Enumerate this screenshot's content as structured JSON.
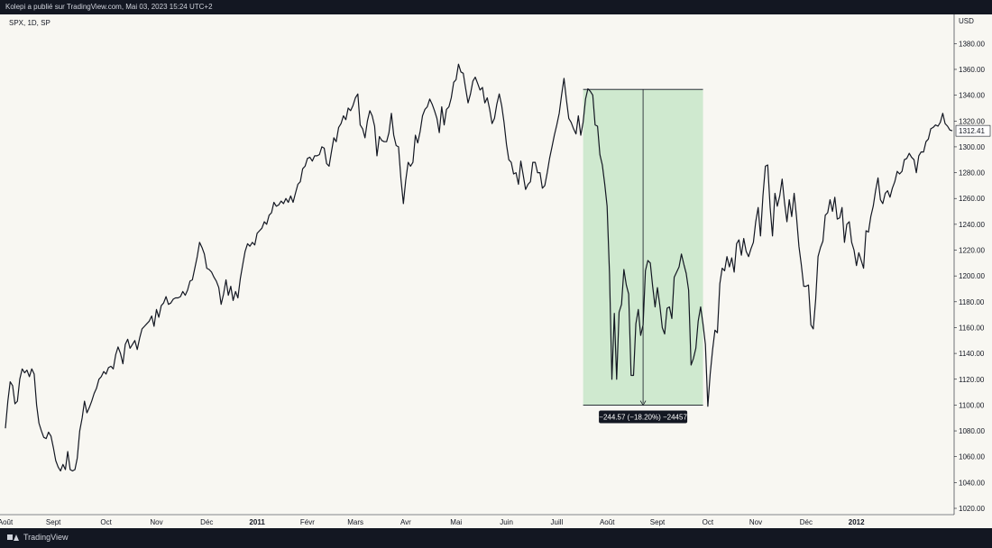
{
  "header": {
    "publish_line": "Kolepi a publié sur TradingView.com, Mai 03, 2023 15:24 UTC+2"
  },
  "symbol_line": "SPX, 1D, SP",
  "footer": {
    "brand": "TradingView"
  },
  "measure_label": "−244.57 (−18.20%) −24457",
  "colors": {
    "line": "#131722",
    "measure_fill": "#c8e6c9",
    "background": "#f8f7f2",
    "bars": "#131722"
  },
  "chart_data": {
    "type": "line",
    "currency": "USD",
    "last_price_label": "1312.41",
    "ylim": [
      1020,
      1390
    ],
    "y_ticks": [
      "1380.00",
      "1360.00",
      "1340.00",
      "1320.00",
      "1300.00",
      "1280.00",
      "1260.00",
      "1240.00",
      "1220.00",
      "1200.00",
      "1180.00",
      "1160.00",
      "1140.00",
      "1120.00",
      "1100.00",
      "1080.00",
      "1060.00",
      "1040.00",
      "1020.00"
    ],
    "x_ticks": [
      "Août",
      "Sept",
      "Oct",
      "Nov",
      "Déc",
      "2011",
      "Févr",
      "Mars",
      "Avr",
      "Mai",
      "Juin",
      "Juill",
      "Août",
      "Sept",
      "Oct",
      "Nov",
      "Déc",
      "2012"
    ],
    "x_tick_idx": [
      0,
      20,
      42,
      63,
      84,
      105,
      126,
      146,
      167,
      188,
      209,
      230,
      251,
      272,
      293,
      313,
      334,
      355
    ],
    "measure": {
      "start_idx": 241,
      "end_idx": 291,
      "high": 1344.5,
      "low": 1099.9
    },
    "series": [
      {
        "values": [
          1082,
          1103,
          1118,
          1115,
          1101,
          1103,
          1120,
          1128,
          1125,
          1127,
          1122,
          1128,
          1124,
          1100,
          1086,
          1080,
          1075,
          1074,
          1079,
          1076,
          1067,
          1057,
          1052,
          1049,
          1054,
          1050,
          1064,
          1050,
          1049,
          1050,
          1059,
          1080,
          1090,
          1103,
          1094,
          1098,
          1103,
          1109,
          1113,
          1120,
          1122,
          1126,
          1124,
          1129,
          1130,
          1128,
          1139,
          1145,
          1140,
          1132,
          1147,
          1151,
          1144,
          1147,
          1150,
          1143,
          1152,
          1159,
          1161,
          1163,
          1165,
          1169,
          1161,
          1174,
          1168,
          1177,
          1179,
          1184,
          1178,
          1179,
          1182,
          1183,
          1183,
          1184,
          1188,
          1185,
          1189,
          1196,
          1197,
          1206,
          1215,
          1226,
          1222,
          1217,
          1206,
          1205,
          1203,
          1199,
          1196,
          1191,
          1178,
          1186,
          1197,
          1185,
          1192,
          1181,
          1188,
          1183,
          1198,
          1209,
          1219,
          1225,
          1223,
          1226,
          1224,
          1233,
          1235,
          1237,
          1242,
          1240,
          1247,
          1249,
          1257,
          1254,
          1255,
          1258,
          1256,
          1260,
          1257,
          1262,
          1257,
          1264,
          1271,
          1273,
          1283,
          1285,
          1291,
          1292,
          1289,
          1293,
          1293,
          1294,
          1300,
          1299,
          1287,
          1285,
          1296,
          1307,
          1304,
          1315,
          1318,
          1324,
          1321,
          1330,
          1328,
          1332,
          1338,
          1341,
          1317,
          1314,
          1307,
          1320,
          1328,
          1324,
          1316,
          1293,
          1308,
          1305,
          1304,
          1304,
          1311,
          1326,
          1309,
          1301,
          1300,
          1275,
          1256,
          1274,
          1288,
          1285,
          1288,
          1309,
          1303,
          1312,
          1324,
          1329,
          1331,
          1337,
          1333,
          1328,
          1322,
          1311,
          1331,
          1317,
          1329,
          1331,
          1338,
          1350,
          1352,
          1364,
          1358,
          1357,
          1345,
          1334,
          1341,
          1351,
          1354,
          1349,
          1344,
          1346,
          1334,
          1338,
          1329,
          1318,
          1322,
          1333,
          1341,
          1332,
          1319,
          1302,
          1290,
          1288,
          1279,
          1280,
          1271,
          1289,
          1278,
          1267,
          1271,
          1273,
          1288,
          1288,
          1280,
          1280,
          1268,
          1270,
          1280,
          1291,
          1300,
          1309,
          1317,
          1326,
          1340,
          1353,
          1337,
          1322,
          1319,
          1314,
          1310,
          1324,
          1309,
          1319,
          1337,
          1345,
          1343,
          1340,
          1317,
          1316,
          1294,
          1286,
          1271,
          1254,
          1201,
          1120,
          1171,
          1120,
          1172,
          1178,
          1205,
          1193,
          1186,
          1123,
          1123,
          1163,
          1174,
          1154,
          1162,
          1204,
          1212,
          1210,
          1192,
          1176,
          1191,
          1177,
          1160,
          1155,
          1175,
          1176,
          1167,
          1199,
          1203,
          1207,
          1217,
          1209,
          1202,
          1189,
          1131,
          1136,
          1144,
          1165,
          1176,
          1163,
          1147,
          1099,
          1124,
          1143,
          1158,
          1156,
          1194,
          1206,
          1204,
          1215,
          1207,
          1214,
          1203,
          1225,
          1228,
          1216,
          1229,
          1219,
          1215,
          1221,
          1226,
          1242,
          1253,
          1231,
          1262,
          1285,
          1286,
          1253,
          1231,
          1264,
          1254,
          1262,
          1275,
          1257,
          1242,
          1259,
          1246,
          1264,
          1246,
          1223,
          1209,
          1192,
          1192,
          1193,
          1162,
          1159,
          1182,
          1215,
          1222,
          1227,
          1247,
          1249,
          1259,
          1250,
          1261,
          1244,
          1245,
          1253,
          1226,
          1240,
          1242,
          1226,
          1220,
          1208,
          1218,
          1212,
          1206,
          1235,
          1234,
          1246,
          1254,
          1266,
          1276,
          1259,
          1256,
          1264,
          1266,
          1261,
          1268,
          1273,
          1281,
          1279,
          1281,
          1290,
          1291,
          1295,
          1292,
          1290,
          1280,
          1293,
          1296,
          1296,
          1304,
          1306,
          1314,
          1315,
          1317,
          1316,
          1319,
          1326,
          1318,
          1316,
          1313,
          1312.41
        ]
      }
    ]
  }
}
